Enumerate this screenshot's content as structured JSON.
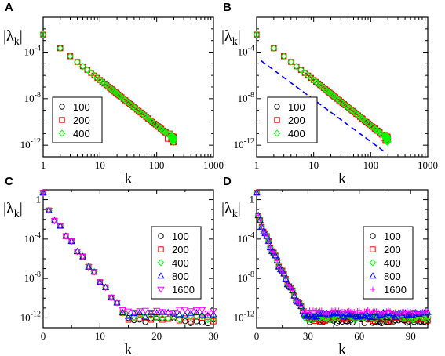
{
  "figure": {
    "panels": [
      "A",
      "B",
      "C",
      "D"
    ]
  },
  "chart_data": [
    {
      "panel": "A",
      "type": "scatter",
      "xscale": "log",
      "yscale": "log",
      "xlim": [
        1,
        1000
      ],
      "ylim": [
        1e-13,
        0.1
      ],
      "xticks": [
        "1",
        "10",
        "100",
        "1000"
      ],
      "xtick_values": [
        1,
        10,
        100,
        1000
      ],
      "yticks": [
        "10^-4",
        "10^-8",
        "10^-12"
      ],
      "ytick_values": [
        0.0001,
        1e-08,
        1e-12
      ],
      "xlabel": "k",
      "ylabel": "|λk|",
      "legend_placement": "lower-left",
      "series": [
        {
          "name": "100",
          "marker": "circle",
          "color": "#000000",
          "decay": "power",
          "a": 0.0032,
          "b": 3.9,
          "kmax": 100
        },
        {
          "name": "200",
          "marker": "square",
          "color": "#ff0000",
          "decay": "power",
          "a": 0.0032,
          "b": 3.9,
          "kmax": 200
        },
        {
          "name": "400",
          "marker": "diamond",
          "color": "#00ff00",
          "decay": "power",
          "a": 0.0032,
          "b": 3.9,
          "kmax": 200
        }
      ],
      "reference_line": null
    },
    {
      "panel": "B",
      "type": "scatter",
      "xscale": "log",
      "yscale": "log",
      "xlim": [
        1,
        1000
      ],
      "ylim": [
        1e-13,
        0.1
      ],
      "xticks": [
        "1",
        "10",
        "100",
        "1000"
      ],
      "xtick_values": [
        1,
        10,
        100,
        1000
      ],
      "yticks": [
        "10^-4",
        "10^-8",
        "10^-12"
      ],
      "ytick_values": [
        0.0001,
        1e-08,
        1e-12
      ],
      "xlabel": "k",
      "ylabel": "|λk|",
      "legend_placement": "lower-left",
      "series": [
        {
          "name": "100",
          "marker": "circle",
          "color": "#000000",
          "decay": "power",
          "a": 0.0032,
          "b": 3.9,
          "kmax": 100
        },
        {
          "name": "200",
          "marker": "square",
          "color": "#ff0000",
          "decay": "power",
          "a": 0.0032,
          "b": 3.9,
          "kmax": 200
        },
        {
          "name": "400",
          "marker": "diamond",
          "color": "#00ff00",
          "decay": "power",
          "a": 0.0032,
          "b": 3.9,
          "kmax": 200
        }
      ],
      "reference_line": {
        "color": "#0000ff",
        "style": "dashed",
        "points": [
          [
            1.2,
            1.8e-05
          ],
          [
            170,
            3e-13
          ]
        ]
      }
    },
    {
      "panel": "C",
      "type": "scatter",
      "xscale": "linear",
      "yscale": "log",
      "xlim": [
        0,
        30
      ],
      "ylim": [
        1e-13,
        10
      ],
      "xticks": [
        "0",
        "10",
        "20",
        "30"
      ],
      "xtick_values": [
        0,
        10,
        20,
        30
      ],
      "yticks": [
        "1",
        "10^-4",
        "10^-8",
        "10^-12"
      ],
      "ytick_values": [
        1,
        0.0001,
        1e-08,
        1e-12
      ],
      "xlabel": "k",
      "ylabel": "|λk|",
      "legend_placement": "right",
      "noise_floor": 2e-12,
      "kmax": 30,
      "series": [
        {
          "name": "100",
          "marker": "circle",
          "color": "#000000",
          "floor": 4e-13
        },
        {
          "name": "200",
          "marker": "square",
          "color": "#ff0000",
          "floor": 6e-13
        },
        {
          "name": "400",
          "marker": "diamond",
          "color": "#00ff00",
          "floor": 9e-13
        },
        {
          "name": "800",
          "marker": "triangle-up",
          "color": "#0000ff",
          "floor": 1.6e-12
        },
        {
          "name": "1600",
          "marker": "triangle-down",
          "color": "#ff00ff",
          "floor": 3e-12
        }
      ],
      "reference_line": null
    },
    {
      "panel": "D",
      "type": "scatter",
      "xscale": "linear",
      "yscale": "log",
      "xlim": [
        0,
        100
      ],
      "ylim": [
        1e-13,
        10
      ],
      "xticks": [
        "0",
        "30",
        "60",
        "90"
      ],
      "xtick_values": [
        0,
        30,
        60,
        90
      ],
      "yticks": [
        "1",
        "10^-4",
        "10^-8",
        "10^-12"
      ],
      "ytick_values": [
        1,
        0.0001,
        1e-08,
        1e-12
      ],
      "xlabel": "k",
      "ylabel": "|λk|",
      "legend_placement": "right",
      "noise_floor": 2e-12,
      "kmax": 100,
      "series": [
        {
          "name": "100",
          "marker": "circle",
          "color": "#000000",
          "floor": 4e-13
        },
        {
          "name": "200",
          "marker": "square",
          "color": "#ff0000",
          "floor": 6e-13
        },
        {
          "name": "400",
          "marker": "diamond",
          "color": "#00ff00",
          "floor": 9e-13
        },
        {
          "name": "800",
          "marker": "triangle-up",
          "color": "#0000ff",
          "floor": 1.6e-12
        },
        {
          "name": "1600",
          "marker": "plus",
          "color": "#ff00ff",
          "floor": 3e-12
        }
      ],
      "reference_line": null
    }
  ]
}
